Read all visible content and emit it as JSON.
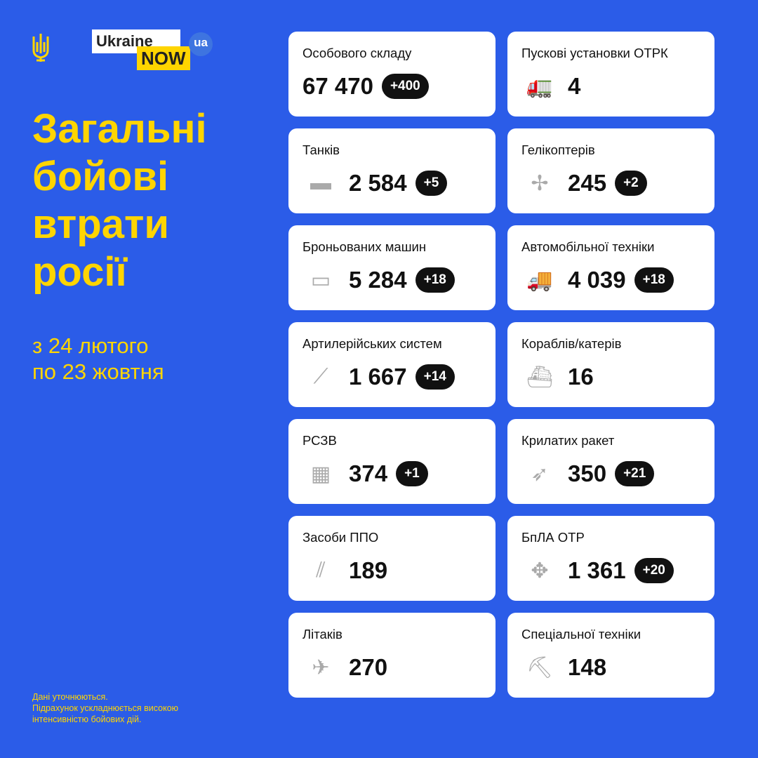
{
  "logo": {
    "line1": "Ukraine",
    "line2": "NOW",
    "badge": "ua"
  },
  "title": [
    "Загальні",
    "бойові",
    "втрати",
    "росії"
  ],
  "period": [
    "з 24 лютого",
    "по 23 жовтня"
  ],
  "note": [
    "Дані уточнюються.",
    "Підрахунок ускладнюється високою",
    "інтенсивністю бойових дій."
  ],
  "colors": {
    "background": "#2b5ce8",
    "accent": "#ffd500"
  },
  "cards": [
    {
      "label": "Особового складу",
      "value": "67 470",
      "delta": "+400",
      "icon": ""
    },
    {
      "label": "Пускові установки ОТРК",
      "value": "4",
      "delta": "",
      "icon": "missile-launcher-icon"
    },
    {
      "label": "Танків",
      "value": "2 584",
      "delta": "+5",
      "icon": "tank-icon"
    },
    {
      "label": "Гелікоптерів",
      "value": "245",
      "delta": "+2",
      "icon": "helicopter-icon"
    },
    {
      "label": "Броньованих машин",
      "value": "5 284",
      "delta": "+18",
      "icon": "apc-icon"
    },
    {
      "label": "Автомобільної техніки",
      "value": "4 039",
      "delta": "+18",
      "icon": "truck-icon"
    },
    {
      "label": "Артилерійських систем",
      "value": "1 667",
      "delta": "+14",
      "icon": "artillery-icon"
    },
    {
      "label": "Кораблів/катерів",
      "value": "16",
      "delta": "",
      "icon": "ship-icon"
    },
    {
      "label": "РСЗВ",
      "value": "374",
      "delta": "+1",
      "icon": "mlrs-icon"
    },
    {
      "label": "Крилатих ракет",
      "value": "350",
      "delta": "+21",
      "icon": "cruise-missile-icon"
    },
    {
      "label": "Засоби ППО",
      "value": "189",
      "delta": "",
      "icon": "air-defense-icon"
    },
    {
      "label": "БпЛА ОТР",
      "value": "1 361",
      "delta": "+20",
      "icon": "drone-icon"
    },
    {
      "label": "Літаків",
      "value": "270",
      "delta": "",
      "icon": "aircraft-icon"
    },
    {
      "label": "Спеціальної техніки",
      "value": "148",
      "delta": "",
      "icon": "special-equipment-icon"
    }
  ]
}
